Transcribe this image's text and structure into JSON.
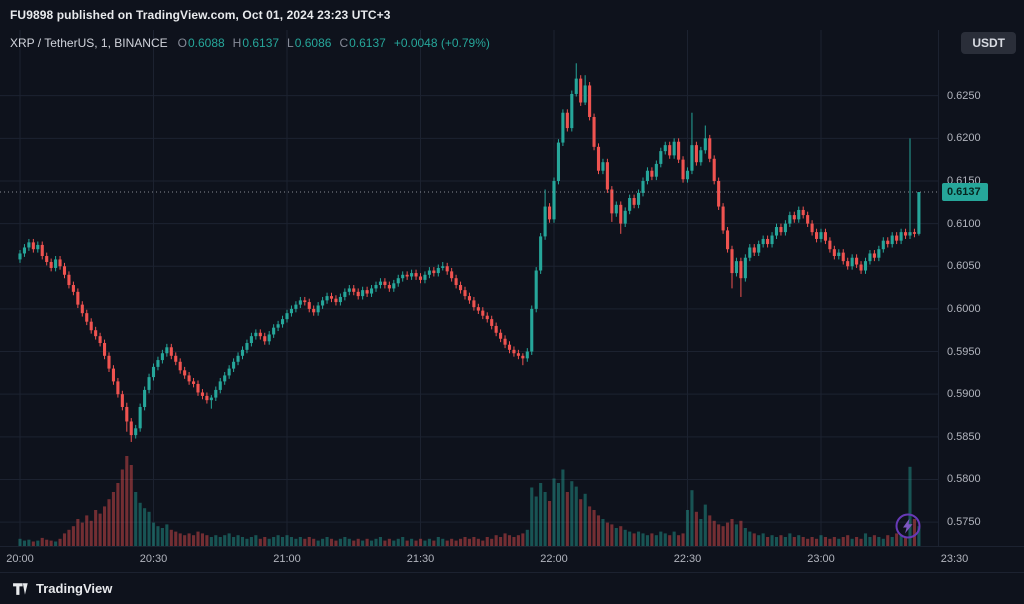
{
  "topbar": {
    "publish_text": "FU9898 published on TradingView.com, Oct 01, 2024 23:23 UTC+3",
    "currency_button": "USDT"
  },
  "legend": {
    "symbol": "XRP / TetherUS, 1, BINANCE",
    "o_label": "O",
    "o": "0.6088",
    "h_label": "H",
    "h": "0.6137",
    "l_label": "L",
    "l": "0.6086",
    "c_label": "C",
    "c": "0.6137",
    "change": "+0.0048 (+0.79%)"
  },
  "footer": {
    "brand": "TradingView"
  },
  "colors": {
    "background": "#0e121c",
    "grid": "#1c2230",
    "up": "#26a69a",
    "down": "#ef5350",
    "axis_text": "#b2b5be",
    "last_price_line": "#b2b5be",
    "badge_bg": "#26a69a",
    "boost_ring": "#673ab7",
    "boost_bolt": "#7e57c2"
  },
  "chart_data": {
    "type": "candlestick",
    "title": "XRP / TetherUS, 1, BINANCE",
    "interval_minutes": 1,
    "start_time": "20:00",
    "first_open": 0.6058,
    "closes": [
      0.6065,
      0.6072,
      0.6078,
      0.607,
      0.6075,
      0.6062,
      0.6055,
      0.6048,
      0.6058,
      0.605,
      0.604,
      0.6028,
      0.602,
      0.6005,
      0.5995,
      0.5985,
      0.5975,
      0.5968,
      0.596,
      0.5945,
      0.593,
      0.5915,
      0.59,
      0.5885,
      0.5868,
      0.5852,
      0.586,
      0.5885,
      0.5905,
      0.592,
      0.5932,
      0.594,
      0.5948,
      0.5955,
      0.5945,
      0.5938,
      0.5928,
      0.5922,
      0.5915,
      0.5912,
      0.5902,
      0.5898,
      0.5893,
      0.5896,
      0.5905,
      0.5915,
      0.5922,
      0.593,
      0.5938,
      0.5945,
      0.5952,
      0.596,
      0.5968,
      0.5972,
      0.5968,
      0.5962,
      0.597,
      0.5978,
      0.5982,
      0.5988,
      0.5995,
      0.6,
      0.6005,
      0.601,
      0.6008,
      0.6,
      0.5996,
      0.6004,
      0.601,
      0.6015,
      0.6012,
      0.6008,
      0.6014,
      0.602,
      0.6024,
      0.602,
      0.6015,
      0.6022,
      0.6018,
      0.6024,
      0.6028,
      0.6032,
      0.6028,
      0.6024,
      0.603,
      0.6036,
      0.604,
      0.6038,
      0.6042,
      0.6038,
      0.6034,
      0.604,
      0.6045,
      0.6042,
      0.6048,
      0.605,
      0.6044,
      0.6036,
      0.6028,
      0.6022,
      0.6015,
      0.601,
      0.6002,
      0.5998,
      0.5992,
      0.5988,
      0.598,
      0.5972,
      0.5965,
      0.5958,
      0.5952,
      0.5948,
      0.5945,
      0.5942,
      0.595,
      0.6,
      0.6045,
      0.6085,
      0.612,
      0.6105,
      0.615,
      0.6195,
      0.623,
      0.6212,
      0.6252,
      0.627,
      0.6242,
      0.6262,
      0.6225,
      0.619,
      0.6162,
      0.6172,
      0.614,
      0.6112,
      0.6122,
      0.61,
      0.6115,
      0.613,
      0.6122,
      0.6136,
      0.615,
      0.6162,
      0.6155,
      0.617,
      0.6185,
      0.6192,
      0.618,
      0.6196,
      0.6175,
      0.6152,
      0.6162,
      0.6192,
      0.6172,
      0.6186,
      0.62,
      0.6176,
      0.615,
      0.612,
      0.6092,
      0.607,
      0.6042,
      0.6056,
      0.6036,
      0.606,
      0.6072,
      0.6066,
      0.6076,
      0.6082,
      0.6076,
      0.6086,
      0.6096,
      0.609,
      0.61,
      0.611,
      0.6105,
      0.6116,
      0.611,
      0.61,
      0.609,
      0.6082,
      0.609,
      0.608,
      0.607,
      0.6062,
      0.6066,
      0.6056,
      0.605,
      0.606,
      0.6052,
      0.6045,
      0.6056,
      0.6065,
      0.606,
      0.607,
      0.608,
      0.6076,
      0.6086,
      0.608,
      0.609,
      0.6086,
      0.609,
      0.6088,
      0.6137
    ],
    "volumes": [
      8,
      6,
      7,
      5,
      6,
      9,
      7,
      6,
      5,
      8,
      14,
      18,
      22,
      30,
      26,
      34,
      28,
      40,
      36,
      44,
      52,
      60,
      70,
      85,
      100,
      90,
      60,
      48,
      42,
      38,
      26,
      22,
      20,
      24,
      18,
      16,
      14,
      12,
      14,
      12,
      16,
      14,
      12,
      10,
      12,
      10,
      12,
      14,
      10,
      12,
      10,
      8,
      10,
      12,
      8,
      10,
      8,
      10,
      12,
      10,
      12,
      10,
      8,
      10,
      8,
      10,
      8,
      6,
      8,
      10,
      8,
      6,
      8,
      10,
      8,
      6,
      8,
      6,
      8,
      6,
      8,
      10,
      6,
      8,
      6,
      8,
      10,
      6,
      8,
      6,
      8,
      6,
      8,
      6,
      10,
      8,
      6,
      8,
      6,
      8,
      10,
      8,
      10,
      8,
      6,
      10,
      8,
      12,
      10,
      14,
      12,
      10,
      12,
      14,
      18,
      65,
      55,
      70,
      60,
      50,
      75,
      70,
      85,
      60,
      72,
      66,
      52,
      58,
      44,
      40,
      34,
      30,
      26,
      24,
      20,
      22,
      18,
      16,
      14,
      16,
      14,
      12,
      14,
      12,
      16,
      14,
      12,
      16,
      12,
      14,
      40,
      62,
      38,
      30,
      46,
      34,
      28,
      24,
      22,
      26,
      30,
      24,
      28,
      20,
      16,
      14,
      12,
      14,
      10,
      12,
      10,
      12,
      10,
      14,
      10,
      12,
      10,
      8,
      10,
      8,
      12,
      10,
      8,
      10,
      8,
      10,
      12,
      8,
      10,
      8,
      14,
      10,
      12,
      10,
      8,
      12,
      10,
      14,
      12,
      10,
      88,
      30,
      22
    ],
    "wick_default": 4,
    "wick_overrides": {
      "24": [
        5,
        12
      ],
      "25": [
        4,
        8
      ],
      "43": [
        3,
        10
      ],
      "95": [
        5,
        3
      ],
      "113": [
        3,
        8
      ],
      "118": [
        20,
        4
      ],
      "125": [
        18,
        3
      ],
      "127": [
        12,
        3
      ],
      "133": [
        4,
        10
      ],
      "135": [
        4,
        12
      ],
      "151": [
        38,
        4
      ],
      "154": [
        15,
        4
      ],
      "160": [
        4,
        18
      ],
      "162": [
        4,
        22
      ],
      "200": [
        110,
        4
      ],
      "202": [
        0,
        2
      ]
    },
    "price_axis": {
      "min": 0.5722,
      "max": 0.6327,
      "ticks": [
        0.625,
        0.62,
        0.615,
        0.61,
        0.605,
        0.6,
        0.595,
        0.59,
        0.585,
        0.58,
        0.575
      ],
      "last_price": 0.6137
    },
    "time_axis": {
      "labels": [
        "20:00",
        "20:30",
        "21:00",
        "21:30",
        "22:00",
        "22:30",
        "23:00",
        "23:30"
      ],
      "step_minutes": 30
    },
    "ylim": [
      0.5722,
      0.6327
    ]
  }
}
